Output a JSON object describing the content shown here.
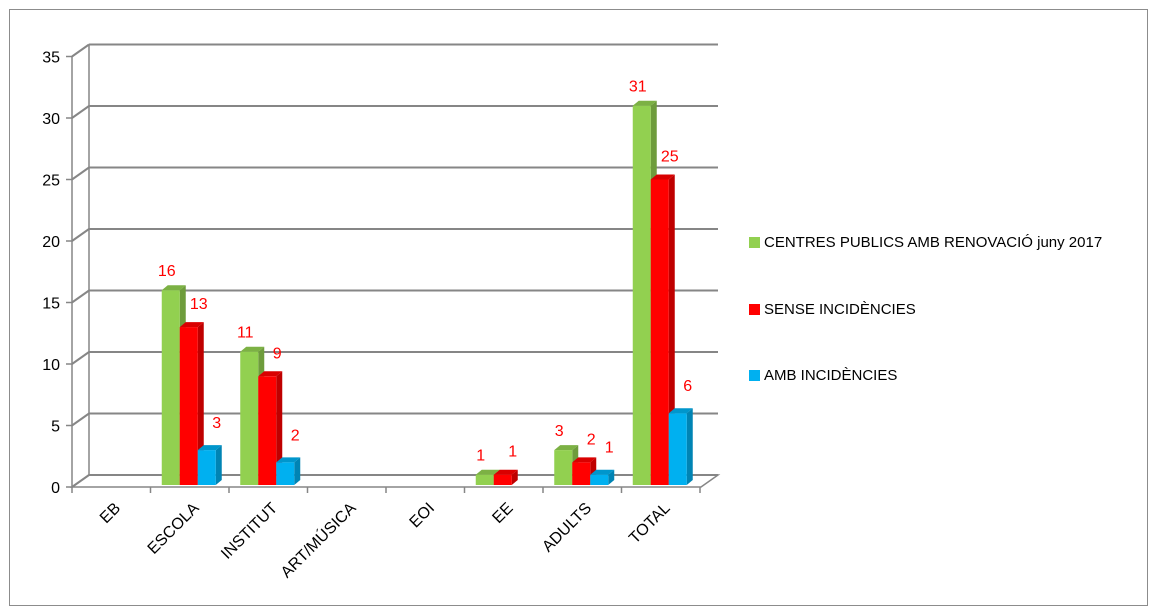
{
  "chart_data": {
    "type": "bar",
    "categories": [
      "EB",
      "ESCOLA",
      "INSTITUT",
      "ART/MÚSICA",
      "EOI",
      "EE",
      "ADULTS",
      "TOTAL"
    ],
    "series": [
      {
        "name": "CENTRES PUBLICS AMB RENOVACIÓ juny 2017",
        "color": "#92d050",
        "values": [
          0,
          16,
          11,
          0,
          0,
          1,
          3,
          31
        ]
      },
      {
        "name": "SENSE INCIDÈNCIES",
        "color": "#ff0000",
        "values": [
          0,
          13,
          9,
          0,
          0,
          1,
          2,
          25
        ]
      },
      {
        "name": "AMB INCIDÈNCIES",
        "color": "#00b0f0",
        "values": [
          0,
          3,
          2,
          0,
          0,
          0,
          1,
          6
        ]
      }
    ],
    "data_labels": [
      [
        null,
        "16",
        "11",
        null,
        null,
        "1",
        "3",
        "31"
      ],
      [
        null,
        "13",
        "9",
        null,
        null,
        "1",
        "2",
        "25"
      ],
      [
        null,
        "3",
        "2",
        null,
        null,
        null,
        "1",
        "6"
      ]
    ],
    "yticks": [
      "0",
      "5",
      "10",
      "15",
      "20",
      "25",
      "30",
      "35"
    ],
    "ylim": [
      0,
      35
    ],
    "grid": true,
    "legend_position": "right",
    "three_d": true
  }
}
